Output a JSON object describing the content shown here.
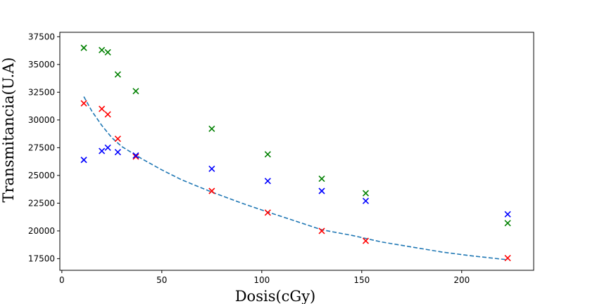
{
  "chart_data": {
    "type": "scatter",
    "title": "",
    "xlabel": "Dosis(cGy)",
    "ylabel": "Transmitancia(U.A)",
    "xlim": [
      -1,
      236
    ],
    "ylim": [
      16450,
      37900
    ],
    "xticks": [
      0,
      50,
      100,
      150,
      200
    ],
    "yticks": [
      17500,
      20000,
      22500,
      25000,
      27500,
      30000,
      32500,
      35000,
      37500
    ],
    "xtick_labels": [
      "0",
      "50",
      "100",
      "150",
      "200"
    ],
    "ytick_labels": [
      "17500",
      "20000",
      "22500",
      "25000",
      "27500",
      "30000",
      "32500",
      "35000",
      "37500"
    ],
    "grid": false,
    "legend": "none",
    "series": [
      {
        "color": "#008000",
        "marker": "x",
        "x": [
          11,
          20,
          23,
          28,
          37,
          75,
          103,
          130,
          152,
          223
        ],
        "y": [
          36500,
          36300,
          36100,
          34100,
          32600,
          29200,
          26900,
          24700,
          23400,
          20700
        ]
      },
      {
        "color": "#ff0000",
        "marker": "x",
        "x": [
          11,
          20,
          23,
          28,
          37,
          75,
          103,
          130,
          152,
          223
        ],
        "y": [
          31500,
          31000,
          30500,
          28300,
          26700,
          23600,
          21650,
          20000,
          19100,
          17550
        ]
      },
      {
        "color": "#0000ff",
        "marker": "x",
        "x": [
          11,
          20,
          23,
          28,
          37,
          75,
          103,
          130,
          152,
          223
        ],
        "y": [
          26400,
          27200,
          27500,
          27100,
          26800,
          25600,
          24500,
          23600,
          22700,
          21500
        ]
      },
      {
        "color": "#1f77b4",
        "type": "line",
        "dashed": true,
        "x": [
          11,
          15,
          20,
          25,
          30,
          40,
          50,
          60,
          75,
          90,
          103,
          115,
          130,
          145,
          160,
          175,
          190,
          205,
          223
        ],
        "y": [
          32100,
          30800,
          29500,
          28400,
          27600,
          26500,
          25500,
          24600,
          23500,
          22500,
          21700,
          21000,
          20100,
          19600,
          19000,
          18550,
          18100,
          17750,
          17400
        ]
      }
    ]
  }
}
